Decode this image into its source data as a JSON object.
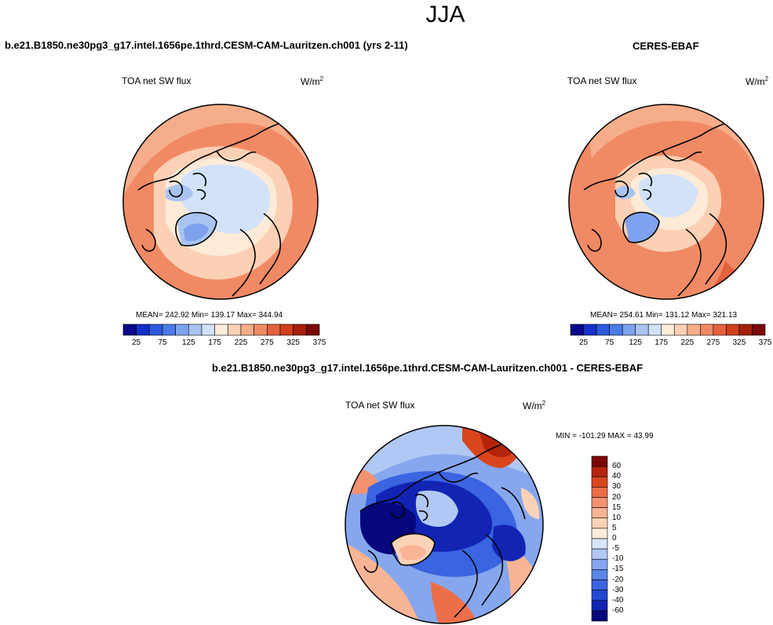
{
  "season": "JJA",
  "colors": {
    "abs_scale": [
      "#08088c",
      "#1530c8",
      "#2d5ae0",
      "#4a7ce8",
      "#7ea2ee",
      "#a9c4f2",
      "#d2e2f8",
      "#fdebd8",
      "#fbd0b4",
      "#f6ad8a",
      "#f08a64",
      "#e5623e",
      "#d0401f",
      "#a5200c",
      "#7a0808"
    ],
    "diff_scale": [
      "#06067d",
      "#1224b4",
      "#2448d4",
      "#3a64e0",
      "#5c86e8",
      "#86a7ee",
      "#b1c8f4",
      "#d8e6fa",
      "#fdecd8",
      "#fcd2b6",
      "#f8b494",
      "#f39270",
      "#ec6e48",
      "#d9461e",
      "#b5230b",
      "#7c0505"
    ],
    "coast": "#000000",
    "light_blue": "#d8e6fa"
  },
  "panels": {
    "model": {
      "title": "b.e21.B1850.ne30pg3_g17.intel.1656pe.1thrd.CESM-CAM-Lauritzen.ch001 (yrs 2-11)",
      "variable": "TOA net SW flux",
      "units_base": "W/m",
      "units_exp": "2",
      "stats": "MEAN= 242.92  Min= 139.17  Max= 344.94"
    },
    "obs": {
      "title": "CERES-EBAF",
      "variable": "TOA net SW flux",
      "units_base": "W/m",
      "units_exp": "2",
      "stats": "MEAN= 254.61  Min= 131.12  Max= 321.13"
    },
    "diff": {
      "title": "b.e21.B1850.ne30pg3_g17.intel.1656pe.1thrd.CESM-CAM-Lauritzen.ch001 - CERES-EBAF",
      "variable": "TOA net SW flux",
      "units_base": "W/m",
      "units_exp": "2",
      "stats": "MIN = -101.29 MAX =  43.99"
    }
  },
  "chart_data": [
    {
      "type": "heatmap",
      "projection": "north polar stereographic",
      "title": "b.e21.B1850.ne30pg3_g17.intel.1656pe.1thrd.CESM-CAM-Lauritzen.ch001 (yrs 2-11)",
      "variable": "TOA net SW flux",
      "units": "W/m2",
      "mean": 242.92,
      "min": 139.17,
      "max": 344.94,
      "colorbar_levels": [
        25,
        50,
        75,
        100,
        125,
        150,
        175,
        200,
        225,
        250,
        275,
        300,
        325,
        350,
        375
      ],
      "colorbar_tick_labels": [
        "25",
        "75",
        "125",
        "175",
        "225",
        "275",
        "325",
        "375"
      ]
    },
    {
      "type": "heatmap",
      "projection": "north polar stereographic",
      "title": "CERES-EBAF",
      "variable": "TOA net SW flux",
      "units": "W/m2",
      "mean": 254.61,
      "min": 131.12,
      "max": 321.13,
      "colorbar_levels": [
        25,
        50,
        75,
        100,
        125,
        150,
        175,
        200,
        225,
        250,
        275,
        300,
        325,
        350,
        375
      ],
      "colorbar_tick_labels": [
        "25",
        "75",
        "125",
        "175",
        "225",
        "275",
        "325",
        "375"
      ]
    },
    {
      "type": "heatmap",
      "projection": "north polar stereographic",
      "title": "b.e21.B1850.ne30pg3_g17.intel.1656pe.1thrd.CESM-CAM-Lauritzen.ch001 - CERES-EBAF",
      "variable": "TOA net SW flux",
      "units": "W/m2",
      "min": -101.29,
      "max": 43.99,
      "colorbar_levels": [
        -60,
        -40,
        -30,
        -20,
        -15,
        -10,
        -5,
        0,
        5,
        10,
        15,
        20,
        30,
        40,
        60
      ],
      "colorbar_tick_labels": [
        "60",
        "40",
        "30",
        "20",
        "15",
        "10",
        "5",
        "0",
        "-5",
        "-10",
        "-15",
        "-20",
        "-30",
        "-40",
        "-60"
      ]
    }
  ]
}
